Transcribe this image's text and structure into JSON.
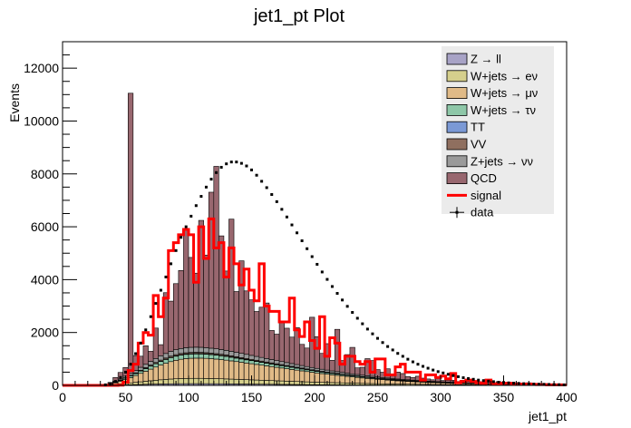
{
  "chart_data": {
    "type": "bar",
    "title": "jet1_pt Plot",
    "xlabel": "jet1_pt",
    "ylabel": "Events",
    "xlim": [
      0,
      400
    ],
    "ylim": [
      0,
      13000
    ],
    "x_ticks": [
      "0",
      "50",
      "100",
      "150",
      "200",
      "250",
      "300",
      "350",
      "400"
    ],
    "y_ticks": [
      "0",
      "2000",
      "4000",
      "6000",
      "8000",
      "10000",
      "12000"
    ],
    "legend_position": "top-right",
    "bin_width": 4,
    "x": [
      2,
      6,
      10,
      14,
      18,
      22,
      26,
      30,
      34,
      38,
      42,
      46,
      50,
      54,
      58,
      62,
      66,
      70,
      74,
      78,
      82,
      86,
      90,
      94,
      98,
      102,
      106,
      110,
      114,
      118,
      122,
      126,
      130,
      134,
      138,
      142,
      146,
      150,
      154,
      158,
      162,
      166,
      170,
      174,
      178,
      182,
      186,
      190,
      194,
      198,
      202,
      206,
      210,
      214,
      218,
      222,
      226,
      230,
      234,
      238,
      242,
      246,
      250,
      254,
      258,
      262,
      266,
      270,
      274,
      278,
      282,
      286,
      290,
      294,
      298,
      302,
      306,
      310,
      314,
      318,
      322,
      326,
      330,
      334,
      338,
      342,
      346,
      350,
      354,
      358,
      362,
      366,
      370,
      374,
      378,
      382,
      386,
      390,
      394,
      398
    ],
    "stack_series": [
      {
        "name": "Z → ll",
        "color": "#a8a3c6",
        "values": [
          0,
          0,
          0,
          0,
          0,
          0,
          0,
          0,
          2,
          5,
          10,
          14,
          20,
          25,
          30,
          35,
          40,
          45,
          50,
          54,
          58,
          60,
          62,
          64,
          65,
          66,
          66,
          66,
          65,
          64,
          63,
          62,
          60,
          58,
          56,
          54,
          52,
          50,
          48,
          46,
          44,
          42,
          40,
          38,
          36,
          34,
          32,
          30,
          28,
          26,
          25,
          24,
          23,
          22,
          21,
          20,
          19,
          18,
          17,
          16,
          15,
          14,
          13,
          12,
          11,
          11,
          10,
          10,
          9,
          9,
          8,
          8,
          7,
          7,
          6,
          6,
          6,
          5,
          5,
          5,
          4,
          4,
          4,
          4,
          3,
          3,
          3,
          3,
          3,
          2,
          2,
          2,
          2,
          2,
          2,
          1,
          1,
          1,
          1,
          1
        ]
      },
      {
        "name": "W+jets → eν",
        "color": "#d5cf8c",
        "values": [
          0,
          0,
          0,
          0,
          0,
          0,
          0,
          0,
          5,
          12,
          25,
          40,
          55,
          70,
          85,
          100,
          115,
          130,
          145,
          158,
          170,
          180,
          188,
          194,
          198,
          200,
          200,
          200,
          198,
          195,
          192,
          188,
          184,
          180,
          175,
          170,
          165,
          160,
          155,
          150,
          145,
          140,
          135,
          130,
          125,
          120,
          115,
          110,
          105,
          100,
          96,
          92,
          88,
          84,
          80,
          76,
          72,
          68,
          64,
          60,
          57,
          54,
          51,
          48,
          45,
          42,
          40,
          38,
          36,
          34,
          32,
          30,
          28,
          26,
          25,
          24,
          22,
          20,
          19,
          18,
          17,
          16,
          15,
          14,
          13,
          12,
          11,
          10,
          9,
          8,
          8,
          7,
          7,
          6,
          6,
          5,
          5,
          4,
          4,
          4
        ]
      },
      {
        "name": "W+jets → μν",
        "color": "#e0ba87",
        "values": [
          0,
          0,
          0,
          0,
          0,
          0,
          0,
          0,
          10,
          30,
          60,
          100,
          150,
          200,
          260,
          320,
          380,
          440,
          500,
          560,
          610,
          660,
          700,
          730,
          750,
          760,
          765,
          765,
          760,
          750,
          740,
          725,
          710,
          690,
          670,
          650,
          630,
          610,
          590,
          570,
          550,
          530,
          510,
          490,
          470,
          450,
          430,
          410,
          390,
          370,
          350,
          330,
          312,
          295,
          280,
          265,
          250,
          235,
          220,
          205,
          192,
          180,
          168,
          156,
          145,
          135,
          125,
          116,
          108,
          100,
          93,
          86,
          80,
          74,
          68,
          63,
          58,
          54,
          50,
          46,
          42,
          39,
          36,
          33,
          30,
          28,
          26,
          24,
          22,
          20,
          18,
          17,
          16,
          15,
          14,
          13,
          12,
          11,
          10,
          9
        ]
      },
      {
        "name": "W+jets → τν",
        "color": "#8ec7a8",
        "values": [
          0,
          0,
          0,
          0,
          0,
          0,
          0,
          0,
          3,
          10,
          20,
          32,
          45,
          58,
          72,
          86,
          100,
          112,
          124,
          134,
          143,
          150,
          155,
          158,
          160,
          160,
          159,
          157,
          155,
          152,
          148,
          144,
          140,
          135,
          130,
          125,
          120,
          115,
          110,
          105,
          100,
          95,
          90,
          86,
          82,
          78,
          74,
          70,
          66,
          62,
          59,
          56,
          53,
          50,
          47,
          44,
          41,
          39,
          37,
          35,
          33,
          31,
          29,
          27,
          25,
          24,
          22,
          21,
          20,
          19,
          18,
          17,
          16,
          15,
          14,
          13,
          12,
          11,
          10,
          10,
          9,
          9,
          8,
          8,
          7,
          7,
          6,
          6,
          5,
          5,
          5,
          4,
          4,
          4,
          3,
          3,
          3,
          3,
          2,
          2
        ]
      },
      {
        "name": "TT",
        "color": "#7b99d5",
        "values": [
          0,
          0,
          0,
          0,
          0,
          0,
          0,
          0,
          0,
          1,
          2,
          3,
          4,
          5,
          6,
          7,
          8,
          9,
          10,
          11,
          12,
          13,
          14,
          15,
          16,
          16,
          17,
          17,
          17,
          17,
          17,
          17,
          17,
          17,
          16,
          16,
          16,
          15,
          15,
          15,
          14,
          14,
          13,
          13,
          12,
          12,
          11,
          11,
          10,
          10,
          9,
          9,
          9,
          8,
          8,
          8,
          7,
          7,
          7,
          6,
          6,
          6,
          5,
          5,
          5,
          5,
          4,
          4,
          4,
          4,
          4,
          3,
          3,
          3,
          3,
          3,
          3,
          2,
          2,
          2,
          2,
          2,
          2,
          2,
          2,
          1,
          1,
          1,
          1,
          1,
          1,
          1,
          1,
          1,
          1,
          1,
          1,
          1,
          1,
          1
        ]
      },
      {
        "name": "VV",
        "color": "#8f6f5f",
        "values": [
          0,
          0,
          0,
          0,
          0,
          0,
          0,
          0,
          1,
          3,
          6,
          10,
          14,
          18,
          22,
          26,
          30,
          34,
          37,
          40,
          42,
          44,
          45,
          46,
          46,
          46,
          46,
          45,
          44,
          43,
          42,
          41,
          40,
          39,
          38,
          37,
          36,
          35,
          34,
          33,
          32,
          31,
          30,
          29,
          28,
          27,
          26,
          25,
          24,
          23,
          22,
          21,
          20,
          19,
          18,
          17,
          16,
          15,
          14,
          13,
          12,
          12,
          11,
          11,
          10,
          10,
          9,
          9,
          8,
          8,
          7,
          7,
          7,
          6,
          6,
          6,
          5,
          5,
          5,
          5,
          4,
          4,
          4,
          4,
          3,
          3,
          3,
          3,
          3,
          2,
          2,
          2,
          2,
          2,
          2,
          2,
          1,
          1,
          1,
          1
        ]
      },
      {
        "name": "Z+jets → νν",
        "color": "#9a9a9a",
        "values": [
          0,
          0,
          0,
          0,
          0,
          0,
          0,
          0,
          4,
          12,
          25,
          40,
          58,
          75,
          92,
          110,
          125,
          140,
          152,
          163,
          172,
          180,
          185,
          189,
          191,
          192,
          192,
          191,
          189,
          186,
          183,
          179,
          175,
          170,
          165,
          160,
          155,
          150,
          144,
          138,
          132,
          126,
          120,
          115,
          110,
          105,
          100,
          95,
          90,
          86,
          82,
          78,
          74,
          70,
          66,
          62,
          59,
          56,
          53,
          50,
          47,
          44,
          41,
          38,
          36,
          34,
          32,
          30,
          28,
          26,
          24,
          23,
          22,
          21,
          20,
          19,
          18,
          17,
          16,
          15,
          14,
          13,
          12,
          11,
          10,
          10,
          9,
          9,
          8,
          8,
          7,
          7,
          6,
          6,
          5,
          5,
          5,
          4,
          4,
          4
        ]
      },
      {
        "name": "QCD",
        "color": "#98676f",
        "values": [
          0,
          0,
          0,
          0,
          0,
          0,
          0,
          0,
          0,
          40,
          150,
          250,
          330,
          10600,
          560,
          420,
          700,
          380,
          1150,
          420,
          2300,
          1900,
          2500,
          2950,
          4500,
          3400,
          2800,
          4800,
          3500,
          5900,
          6900,
          4300,
          3000,
          5000,
          2300,
          3500,
          2400,
          2100,
          1700,
          1900,
          2100,
          1100,
          1000,
          1500,
          1300,
          1000,
          1400,
          800,
          700,
          1900,
          1200,
          600,
          1000,
          400,
          1600,
          450,
          700,
          1000,
          250,
          300,
          650,
          600,
          280,
          200,
          350,
          120,
          260,
          220,
          120,
          100,
          160,
          100,
          80,
          60,
          120,
          50,
          70,
          80,
          40,
          90,
          60,
          30,
          60,
          40,
          50,
          30,
          80,
          40,
          30,
          20,
          30,
          25,
          60,
          20,
          20,
          15,
          20,
          10,
          15,
          10
        ]
      }
    ],
    "signal": {
      "name": "signal",
      "color": "#ff0000",
      "values": [
        0,
        0,
        0,
        0,
        0,
        0,
        0,
        0,
        0,
        0,
        0,
        10,
        120,
        560,
        800,
        1600,
        2000,
        1900,
        3400,
        2600,
        3300,
        5100,
        5400,
        5700,
        5900,
        5700,
        3900,
        6000,
        4800,
        6300,
        5200,
        5400,
        4100,
        5200,
        4600,
        3800,
        4400,
        3600,
        3200,
        4600,
        3000,
        2800,
        2800,
        2400,
        2400,
        3300,
        2100,
        1850,
        2400,
        1700,
        1400,
        2600,
        1100,
        1800,
        1600,
        800,
        1100,
        1100,
        900,
        800,
        900,
        500,
        1000,
        1000,
        400,
        400,
        700,
        800,
        500,
        500,
        500,
        200,
        400,
        400,
        300,
        350,
        250,
        450,
        100,
        150,
        200,
        150,
        100,
        80,
        200,
        60,
        50,
        80,
        80,
        60,
        50,
        40,
        50,
        40,
        30,
        30,
        20,
        20,
        20,
        15
      ]
    },
    "data": {
      "name": "data",
      "color": "#000000",
      "values": [
        0,
        0,
        0,
        0,
        0,
        0,
        0,
        0,
        20,
        50,
        150,
        300,
        500,
        800,
        1200,
        1600,
        2100,
        2600,
        3100,
        3600,
        4100,
        4600,
        5100,
        5600,
        6000,
        6400,
        6800,
        7150,
        7500,
        7800,
        8050,
        8250,
        8380,
        8450,
        8450,
        8400,
        8300,
        8150,
        7950,
        7720,
        7480,
        7220,
        6950,
        6660,
        6370,
        6070,
        5770,
        5470,
        5170,
        4870,
        4580,
        4290,
        4010,
        3740,
        3480,
        3230,
        2990,
        2760,
        2540,
        2330,
        2130,
        1950,
        1780,
        1620,
        1470,
        1340,
        1210,
        1100,
        990,
        890,
        800,
        720,
        650,
        580,
        520,
        470,
        420,
        370,
        330,
        290,
        260,
        230,
        200,
        180,
        160,
        140,
        120,
        110,
        95,
        85,
        75,
        65,
        55,
        50,
        45,
        40,
        35,
        30,
        25,
        20
      ]
    }
  }
}
